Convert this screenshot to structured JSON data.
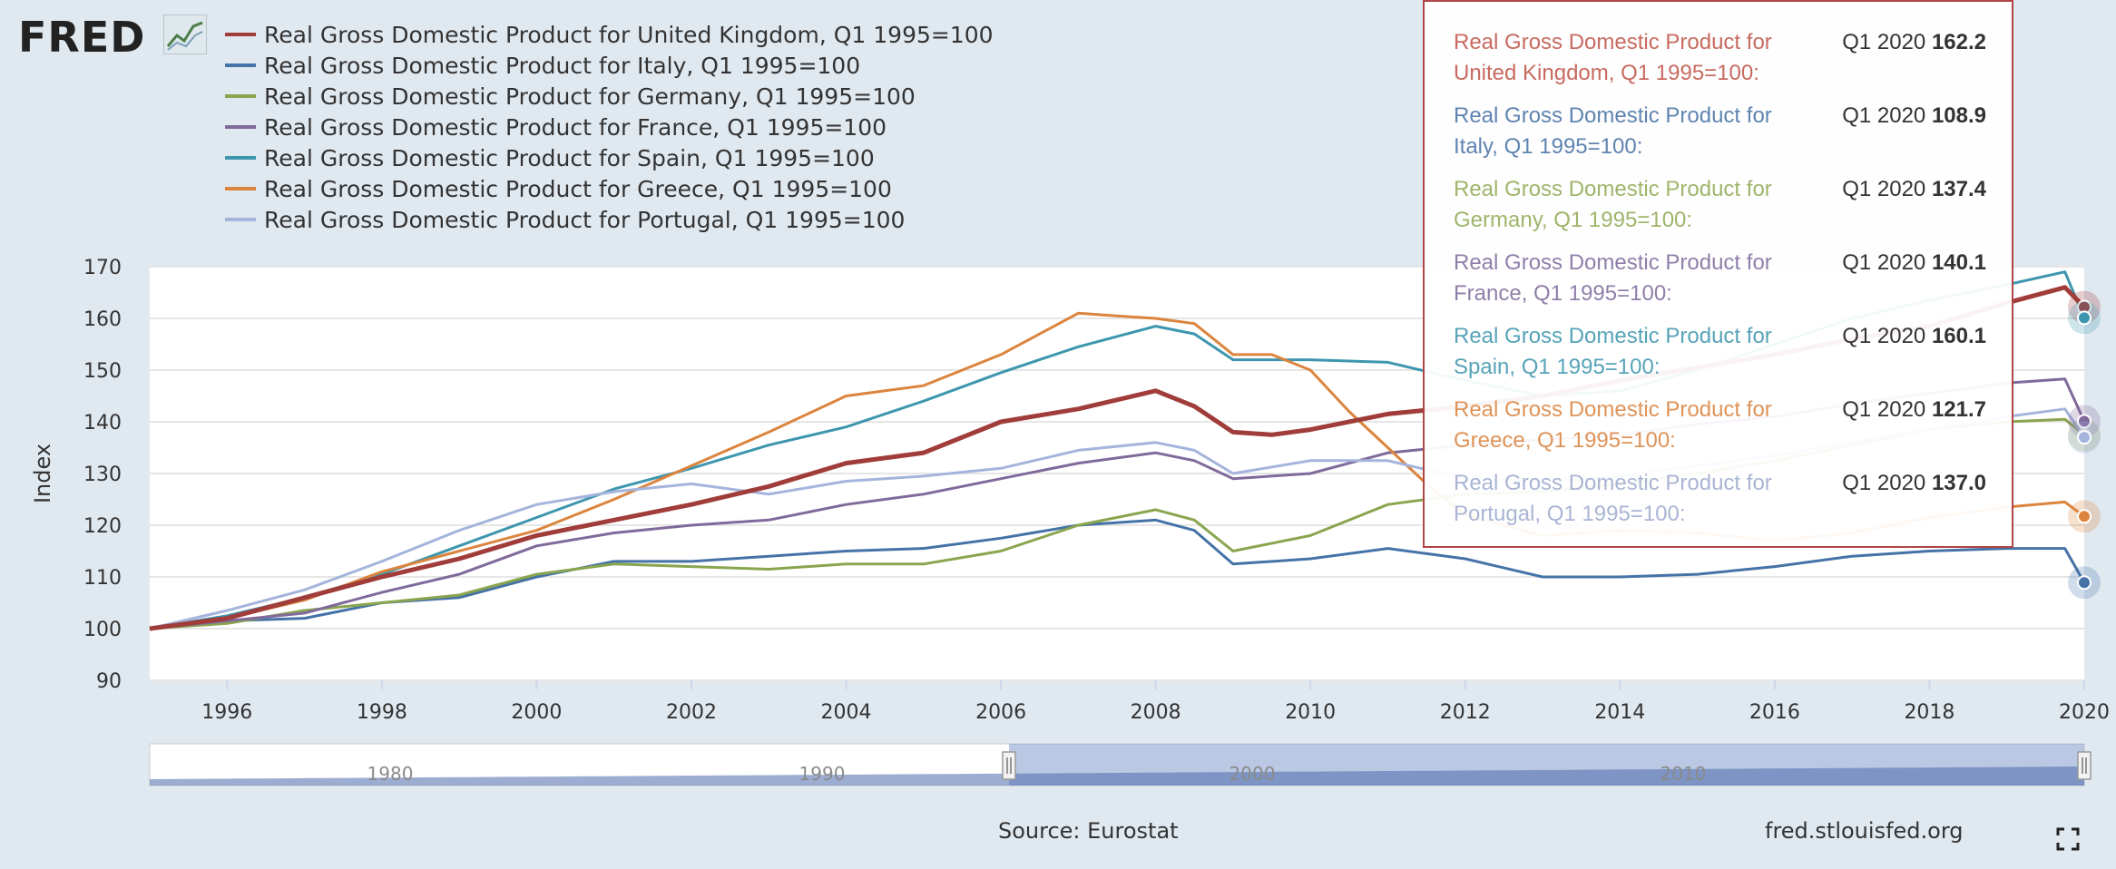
{
  "logo": {
    "text": "FRED",
    "icon": "fred-graph-icon"
  },
  "chart_data": {
    "type": "line",
    "ylabel": "Index",
    "ylim": [
      90,
      170
    ],
    "yticks": [
      90,
      100,
      110,
      120,
      130,
      140,
      150,
      160,
      170
    ],
    "xlim": [
      1995.0,
      2020.0
    ],
    "xticks": [
      "1996",
      "1998",
      "2000",
      "2002",
      "2004",
      "2006",
      "2008",
      "2010",
      "2012",
      "2014",
      "2016",
      "2018",
      "2020"
    ],
    "grid": true,
    "legend_position": "top-left",
    "navigator_labels": [
      "1980",
      "1990",
      "2000",
      "2010"
    ],
    "series": [
      {
        "name": "Real Gross Domestic Product for United Kingdom, Q1 1995=100",
        "color": "#a03c3a",
        "width": 5,
        "x": [
          1995,
          1996,
          1997,
          1998,
          1999,
          2000,
          2001,
          2002,
          2003,
          2004,
          2005,
          2006,
          2007,
          2008,
          2008.5,
          2009,
          2009.5,
          2010,
          2011,
          2012,
          2013,
          2014,
          2015,
          2016,
          2017,
          2018,
          2019,
          2019.75,
          2020
        ],
        "y": [
          100,
          102,
          106,
          110,
          113.5,
          118,
          121,
          124,
          127.5,
          132,
          134,
          140,
          142.5,
          146,
          143,
          138,
          137.5,
          138.5,
          141.5,
          143,
          145,
          148,
          150.5,
          153,
          156,
          158.5,
          163,
          166,
          162.2
        ]
      },
      {
        "name": "Real Gross Domestic Product for Italy, Q1 1995=100",
        "color": "#4572a7",
        "width": 3,
        "x": [
          1995,
          1996,
          1997,
          1998,
          1999,
          2000,
          2001,
          2002,
          2003,
          2004,
          2005,
          2006,
          2007,
          2008,
          2008.5,
          2009,
          2010,
          2011,
          2012,
          2013,
          2014,
          2015,
          2016,
          2017,
          2018,
          2019,
          2019.75,
          2020
        ],
        "y": [
          100,
          101.5,
          102,
          105,
          106,
          110,
          113,
          113,
          114,
          115,
          115.5,
          117.5,
          120,
          121,
          119,
          112.5,
          113.5,
          115.5,
          113.5,
          110,
          110,
          110.5,
          112,
          114,
          115,
          115.5,
          115.5,
          108.9
        ]
      },
      {
        "name": "Real Gross Domestic Product for Germany, Q1 1995=100",
        "color": "#89a54e",
        "width": 3,
        "x": [
          1995,
          1996,
          1997,
          1998,
          1999,
          2000,
          2001,
          2002,
          2003,
          2004,
          2005,
          2006,
          2007,
          2008,
          2008.5,
          2009,
          2010,
          2011,
          2012,
          2013,
          2014,
          2015,
          2016,
          2017,
          2018,
          2019,
          2019.75,
          2020
        ],
        "y": [
          100,
          101,
          103.5,
          105,
          106.5,
          110.5,
          112.5,
          112,
          111.5,
          112.5,
          112.5,
          115,
          120,
          123,
          121,
          115,
          118,
          124,
          126,
          126.5,
          128,
          130,
          132.5,
          135.5,
          138.5,
          140,
          140.5,
          137.4
        ]
      },
      {
        "name": "Real Gross Domestic Product for France, Q1 1995=100",
        "color": "#80699b",
        "width": 3,
        "x": [
          1995,
          1996,
          1997,
          1998,
          1999,
          2000,
          2001,
          2002,
          2003,
          2004,
          2005,
          2006,
          2007,
          2008,
          2008.5,
          2009,
          2010,
          2011,
          2012,
          2013,
          2014,
          2015,
          2016,
          2017,
          2018,
          2019,
          2019.75,
          2020
        ],
        "y": [
          100,
          101.5,
          103,
          107,
          110.5,
          116,
          118.5,
          120,
          121,
          124,
          126,
          129,
          132,
          134,
          132.5,
          129,
          130,
          134,
          135.5,
          136.5,
          137.5,
          139.5,
          141,
          143.5,
          145.5,
          147.5,
          148.3,
          140.1
        ]
      },
      {
        "name": "Real Gross Domestic Product for Spain, Q1 1995=100",
        "color": "#3d96ae",
        "width": 3,
        "x": [
          1995,
          1996,
          1997,
          1998,
          1999,
          2000,
          2001,
          2002,
          2003,
          2004,
          2005,
          2006,
          2007,
          2008,
          2008.5,
          2009,
          2010,
          2011,
          2012,
          2013,
          2014,
          2015,
          2016,
          2017,
          2018,
          2019,
          2019.75,
          2020
        ],
        "y": [
          100,
          102.5,
          106,
          110.5,
          116,
          121.5,
          127,
          131,
          135.5,
          139,
          144,
          149.5,
          154.5,
          158.5,
          157,
          152,
          152,
          151.5,
          148,
          145,
          146,
          150,
          155,
          160,
          163.5,
          166.5,
          169,
          160.1
        ]
      },
      {
        "name": "Real Gross Domestic Product for Greece, Q1 1995=100",
        "color": "#db843d",
        "width": 3,
        "x": [
          1995,
          1996,
          1997,
          1998,
          1999,
          2000,
          2001,
          2002,
          2003,
          2004,
          2005,
          2006,
          2007,
          2007.5,
          2008,
          2008.5,
          2009,
          2009.5,
          2010,
          2010.5,
          2011,
          2011.5,
          2012,
          2013,
          2014,
          2015,
          2016,
          2017,
          2018,
          2019,
          2019.75,
          2020
        ],
        "y": [
          100,
          102,
          105.5,
          111,
          115,
          119,
          125,
          131.5,
          138,
          145,
          147,
          153,
          161,
          160.5,
          160,
          159,
          153,
          153,
          150,
          142,
          135,
          128,
          122,
          118,
          119,
          118.5,
          117,
          118.5,
          121.5,
          123.5,
          124.5,
          121.7
        ]
      },
      {
        "name": "Real Gross Domestic Product for Portugal, Q1 1995=100",
        "color": "#a4b4dc",
        "width": 3,
        "x": [
          1995,
          1996,
          1997,
          1998,
          1999,
          2000,
          2001,
          2002,
          2003,
          2004,
          2005,
          2006,
          2007,
          2008,
          2008.5,
          2009,
          2010,
          2011,
          2012,
          2013,
          2014,
          2015,
          2016,
          2017,
          2018,
          2019,
          2019.75,
          2020
        ],
        "y": [
          100,
          103.5,
          107.5,
          113,
          119,
          124,
          126.5,
          128,
          126,
          128.5,
          129.5,
          131,
          134.5,
          136,
          134.5,
          130,
          132.5,
          132.5,
          129,
          128.5,
          129.5,
          131.5,
          133.5,
          136,
          138.5,
          141,
          142.5,
          137.0
        ]
      }
    ]
  },
  "tooltip": {
    "rows": [
      {
        "name": "Real Gross Domestic Product for United Kingdom, Q1 1995=100:",
        "period": "Q1 2020",
        "value": "162.2",
        "color": "#c86a5f"
      },
      {
        "name": "Real Gross Domestic Product for Italy, Q1 1995=100:",
        "period": "Q1 2020",
        "value": "108.9",
        "color": "#5f84b0"
      },
      {
        "name": "Real Gross Domestic Product for Germany, Q1 1995=100:",
        "period": "Q1 2020",
        "value": "137.4",
        "color": "#9fb56a"
      },
      {
        "name": "Real Gross Domestic Product for France, Q1 1995=100:",
        "period": "Q1 2020",
        "value": "140.1",
        "color": "#8f7fa8"
      },
      {
        "name": "Real Gross Domestic Product for Spain, Q1 1995=100:",
        "period": "Q1 2020",
        "value": "160.1",
        "color": "#57a3b8"
      },
      {
        "name": "Real Gross Domestic Product for Greece, Q1 1995=100:",
        "period": "Q1 2020",
        "value": "121.7",
        "color": "#df9357"
      },
      {
        "name": "Real Gross Domestic Product for Portugal, Q1 1995=100:",
        "period": "Q1 2020",
        "value": "137.0",
        "color": "#a9b5d3"
      }
    ]
  },
  "footer": {
    "source": "Source: Eurostat",
    "site": "fred.stlouisfed.org",
    "expand_icon": "fullscreen-expand-icon"
  }
}
